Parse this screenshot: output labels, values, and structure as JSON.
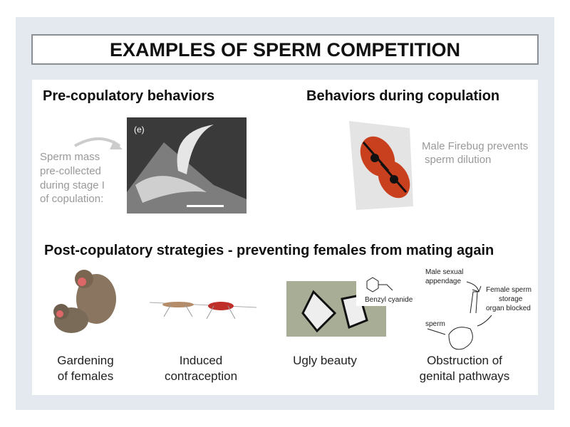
{
  "title": "EXAMPLES OF SPERM COMPETITION",
  "pre_copulatory": {
    "heading": "Pre-copulatory behaviors",
    "caption_lines": [
      "Sperm mass",
      "pre-collected",
      "during stage I",
      "of copulation:"
    ],
    "image_label": "(e)"
  },
  "during_copulation": {
    "heading": "Behaviors during copulation",
    "caption_lines": [
      "Male Firebug prevents",
      "sperm dilution"
    ]
  },
  "post_copulatory": {
    "heading": "Post-copulatory strategies - preventing females from mating again",
    "examples": [
      {
        "caption_lines": [
          "Gardening",
          "of females"
        ]
      },
      {
        "caption_lines": [
          "Induced",
          "contraception"
        ]
      },
      {
        "caption_lines": [
          "Ugly beauty"
        ],
        "image_label": "Benzyl cyanide"
      },
      {
        "caption_lines": [
          "Obstruction of",
          "genital pathways"
        ]
      }
    ],
    "diagram_labels": {
      "male": [
        "Male sexual",
        "appendage"
      ],
      "female": [
        "Female sperm",
        "storage",
        "organ blocked"
      ],
      "sperm": "sperm"
    }
  }
}
